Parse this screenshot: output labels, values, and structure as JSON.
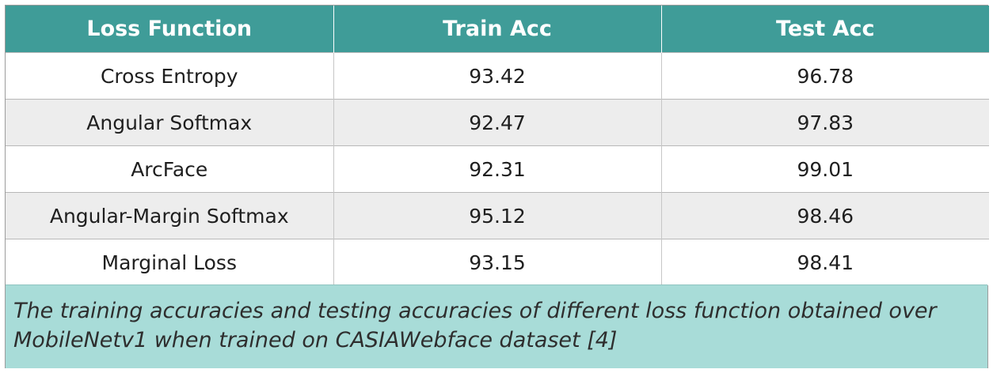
{
  "table": {
    "headers": [
      "Loss Function",
      "Train Acc",
      "Test Acc"
    ],
    "rows": [
      [
        "Cross Entropy",
        "93.42",
        "96.78"
      ],
      [
        "Angular Softmax",
        "92.47",
        "97.83"
      ],
      [
        "ArcFace",
        "92.31",
        "99.01"
      ],
      [
        "Angular-Margin Softmax",
        "95.12",
        "98.46"
      ],
      [
        "Marginal Loss",
        "93.15",
        "98.41"
      ]
    ],
    "header_color": "#3f9c98",
    "stripe_color": "#ededed"
  },
  "caption": {
    "text": "The training accuracies and testing accuracies of different loss function obtained over MobileNetv1 when trained on CASIAWebface dataset [4]",
    "background": "#a8dcd8"
  }
}
